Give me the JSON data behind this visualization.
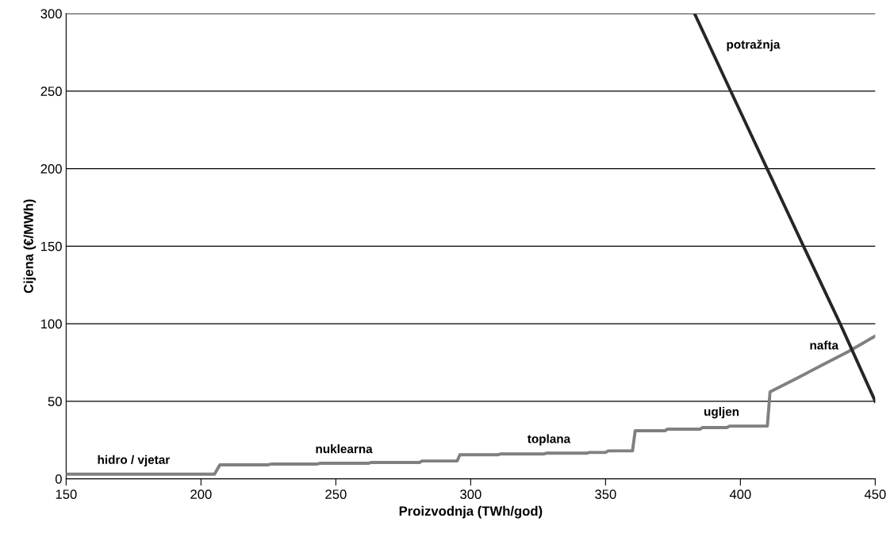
{
  "chart_data": {
    "type": "line",
    "xlabel": "Proizvodnja (TWh/god)",
    "ylabel": "Cijena (€/MWh)",
    "xlim": [
      150,
      450
    ],
    "xticks": [
      150,
      200,
      250,
      300,
      350,
      400,
      450
    ],
    "ylim": [
      0,
      300
    ],
    "yticks": [
      0,
      50,
      100,
      150,
      200,
      250,
      300
    ],
    "grid": "y",
    "legend": false,
    "marker": "none",
    "line_style": "solid",
    "series": [
      {
        "color": "#808080",
        "x": [
          150,
          205,
          207,
          225,
          226,
          243,
          244,
          262,
          263,
          281,
          282,
          295,
          296,
          310,
          311,
          327,
          328,
          343,
          344,
          350,
          351,
          360,
          361,
          372,
          373,
          385,
          386,
          395,
          396,
          410,
          411,
          420,
          430,
          440,
          450
        ],
        "values": [
          3,
          3,
          9,
          9,
          9.5,
          9.5,
          10,
          10,
          10.5,
          10.5,
          11.5,
          11.5,
          15.5,
          15.5,
          16,
          16,
          16.5,
          16.5,
          17,
          17,
          18,
          18,
          31,
          31,
          32,
          32,
          33,
          33,
          34,
          34,
          56,
          64,
          73,
          82,
          92
        ]
      },
      {
        "color": "#262626",
        "x": [
          383,
          396.4,
          409.9,
          423.4,
          437,
          450
        ],
        "values": [
          300,
          250,
          200,
          150,
          100,
          50
        ]
      }
    ],
    "annotations": [
      {
        "text": "hidro / vjetar",
        "x": 175,
        "y": 3
      },
      {
        "text": "nuklearna",
        "x": 253,
        "y": 10
      },
      {
        "text": "toplana",
        "x": 329,
        "y": 16.5
      },
      {
        "text": "ugljen",
        "x": 393,
        "y": 34
      },
      {
        "text": "nafta",
        "x": 431,
        "y": 74
      },
      {
        "text": "potražnja",
        "x": 388.4,
        "y": 280
      }
    ]
  }
}
